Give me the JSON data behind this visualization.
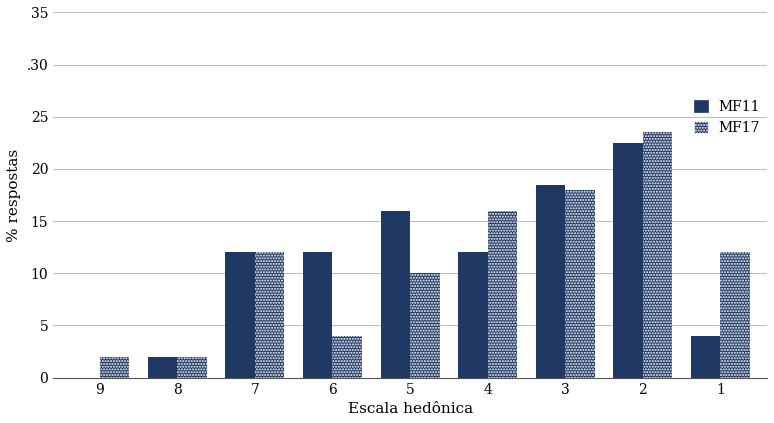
{
  "categories": [
    "9",
    "8",
    "7",
    "6",
    "5",
    "4",
    "3",
    "2",
    "1"
  ],
  "mf11_values": [
    0,
    2,
    12,
    12,
    16,
    12,
    18.5,
    22.5,
    4
  ],
  "mf17_values": [
    2,
    2,
    12,
    4,
    10,
    16,
    18,
    23.5,
    12
  ],
  "mf11_label": "MF11",
  "mf17_label": "MF17",
  "mf11_color": "#1F3864",
  "mf17_color": "#1F3864",
  "xlabel": "Escala hedônica",
  "ylabel": "% respostas",
  "ylim": [
    0,
    35
  ],
  "yticks": [
    0,
    5,
    10,
    15,
    20,
    25,
    30,
    35
  ],
  "ytick_labels": [
    "0",
    "5",
    "10",
    "15",
    "20",
    "25",
    ".30",
    "35"
  ],
  "bar_width": 0.38,
  "grid_color": "#bbbbbb",
  "background_color": "#ffffff",
  "axis_fontsize": 11,
  "tick_fontsize": 10,
  "legend_fontsize": 10
}
